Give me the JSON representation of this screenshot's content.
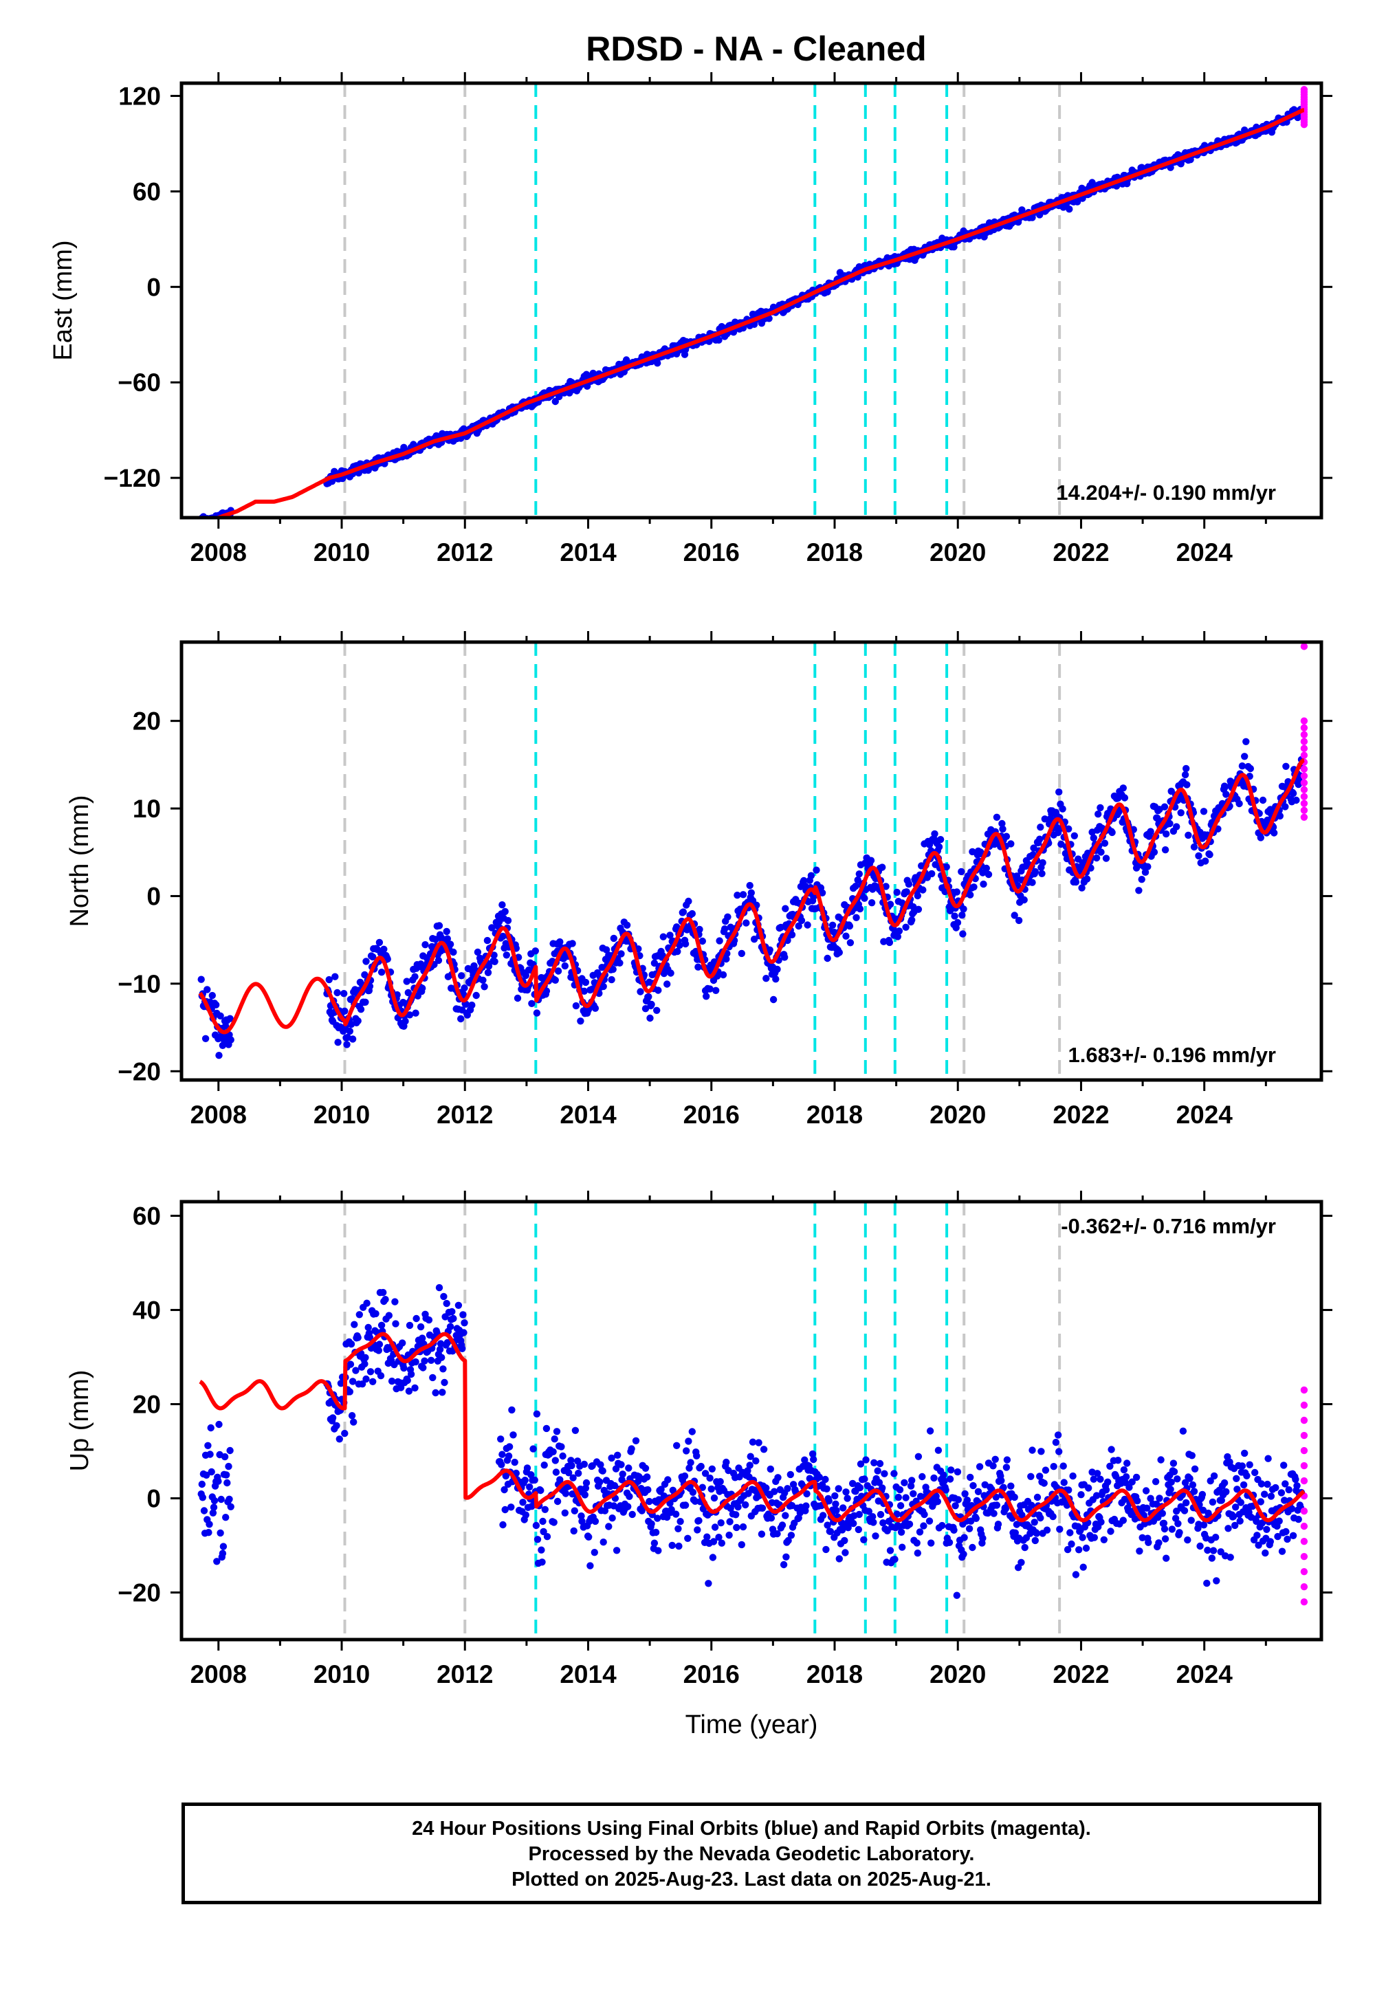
{
  "title": "RDSD  - NA - Cleaned",
  "footer": {
    "line1": "24 Hour Positions Using Final Orbits (blue) and Rapid Orbits (magenta).",
    "line2": "Processed by the Nevada Geodetic Laboratory.",
    "line3": "Plotted on 2025-Aug-23. Last data on 2025-Aug-21."
  },
  "colors": {
    "final": "#0000ee",
    "rapid": "#ff00ff",
    "model": "#ff0000",
    "equipment_change": "#c8c8c8",
    "earthquake": "#00e5e5"
  },
  "chart_data": [
    {
      "type": "scatter",
      "panel": "east",
      "ylabel": "East (mm)",
      "xlabel": "",
      "xlim": [
        2007.4,
        2025.9
      ],
      "ylim": [
        -145,
        128
      ],
      "xticks": [
        2008,
        2010,
        2012,
        2014,
        2016,
        2018,
        2020,
        2022,
        2024
      ],
      "yticks": [
        -120,
        -60,
        0,
        60,
        120
      ],
      "yticklabels": [
        "−120",
        "−60",
        "0",
        "60",
        "120"
      ],
      "rate_label": "14.204+/- 0.190 mm/yr",
      "rate_position": "bottom-right",
      "vlines_gray": [
        2010.05,
        2012.0,
        2020.1,
        2021.65
      ],
      "vlines_cyan": [
        2013.15,
        2017.68,
        2018.5,
        2018.98,
        2019.82
      ],
      "model_knots": {
        "x": [
          2007.7,
          2008.0,
          2008.3,
          2008.6,
          2008.9,
          2009.2,
          2009.5,
          2009.8,
          2010.0,
          2010.5,
          2011.0,
          2011.5,
          2012.0,
          2013.0,
          2014.0,
          2015.0,
          2016.0,
          2017.0,
          2017.7,
          2018.5,
          2019.0,
          2020.0,
          2021.0,
          2022.0,
          2023.0,
          2024.0,
          2025.0,
          2025.6
        ],
        "y": [
          -147,
          -145,
          -141,
          -135,
          -135,
          -132,
          -126,
          -120,
          -118,
          -111,
          -105,
          -97,
          -92,
          -73,
          -59,
          -45,
          -31,
          -16,
          -3,
          11,
          17,
          30,
          44,
          58,
          72,
          86,
          100,
          111
        ]
      },
      "final_density": "daily, ~1.5 mm scatter",
      "rapid_points": {
        "x": 2025.62,
        "y_range": [
          102,
          124
        ]
      }
    },
    {
      "type": "scatter",
      "panel": "north",
      "ylabel": "North (mm)",
      "xlabel": "",
      "xlim": [
        2007.4,
        2025.9
      ],
      "ylim": [
        -21,
        29
      ],
      "xticks": [
        2008,
        2010,
        2012,
        2014,
        2016,
        2018,
        2020,
        2022,
        2024
      ],
      "yticks": [
        -20,
        -10,
        0,
        10,
        20
      ],
      "yticklabels": [
        "−20",
        "−10",
        "0",
        "10",
        "20"
      ],
      "rate_label": "1.683+/- 0.196 mm/yr",
      "rate_position": "bottom-right",
      "vlines_gray": [
        2010.05,
        2012.0,
        2020.1,
        2021.65
      ],
      "vlines_cyan": [
        2013.15,
        2017.68,
        2018.5,
        2018.98,
        2019.82
      ],
      "trend": {
        "x0": 2012.0,
        "y0": -8.3,
        "slope": 1.683
      },
      "seasonal_amplitude_mm": 3.2,
      "offsets": [
        {
          "x": 2013.15,
          "dy": -4.0
        },
        {
          "x": 2017.68,
          "dy": 0.8
        },
        {
          "x": 2019.82,
          "dy": 0.5
        }
      ],
      "rapid_points": {
        "x": 2025.62,
        "y_range": [
          9,
          20
        ],
        "outlier": 28.5
      }
    },
    {
      "type": "scatter",
      "panel": "up",
      "ylabel": "Up (mm)",
      "xlabel": "Time (year)",
      "xlim": [
        2007.4,
        2025.9
      ],
      "ylim": [
        -30,
        63
      ],
      "xticks": [
        2008,
        2010,
        2012,
        2014,
        2016,
        2018,
        2020,
        2022,
        2024
      ],
      "yticks": [
        -20,
        0,
        20,
        40,
        60
      ],
      "yticklabels": [
        "−20",
        "0",
        "20",
        "40",
        "60"
      ],
      "rate_label": "-0.362+/- 0.716 mm/yr",
      "rate_position": "top-right",
      "vlines_gray": [
        2010.05,
        2012.0,
        2020.1,
        2021.65
      ],
      "vlines_cyan": [
        2013.15,
        2017.68,
        2018.5,
        2018.98,
        2019.82
      ],
      "segments": [
        {
          "from": 2007.7,
          "to": 2010.05,
          "level": 22,
          "amplitude": 2.5
        },
        {
          "from": 2010.05,
          "to": 2012.0,
          "level": 32,
          "amplitude": 2.5
        },
        {
          "from": 2012.0,
          "to": 2013.15,
          "level": 3,
          "amplitude": 2.5
        },
        {
          "from": 2013.15,
          "to": 2017.68,
          "level": 0.3,
          "amplitude": 2.8
        },
        {
          "from": 2017.68,
          "to": 2019.82,
          "level": -1.5,
          "amplitude": 2.8
        },
        {
          "from": 2019.82,
          "to": 2025.65,
          "level": -1.5,
          "amplitude": 2.8
        }
      ],
      "rapid_points": {
        "x": 2025.62,
        "y_range": [
          -22,
          23
        ]
      }
    }
  ]
}
